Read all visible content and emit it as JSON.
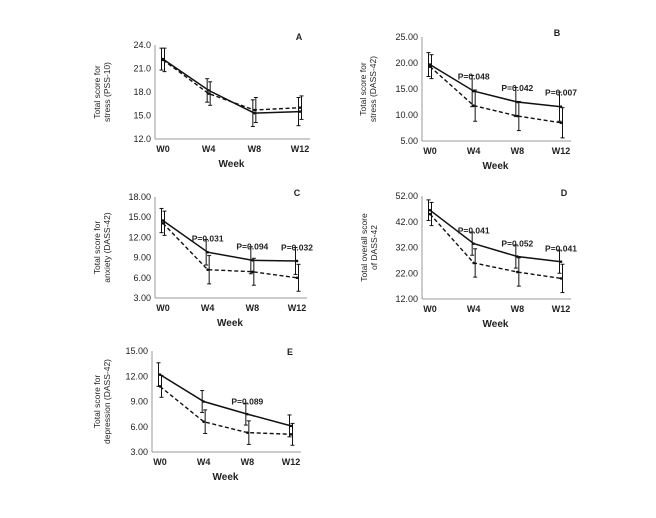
{
  "chart_data": [
    {
      "panel": "A",
      "type": "line",
      "ylabel": [
        "Total score for",
        "stress (PSS-10)"
      ],
      "xlabel": "Week",
      "categories": [
        "W0",
        "W4",
        "W8",
        "W12"
      ],
      "ylim": [
        12.0,
        24.0
      ],
      "yticks": [
        "12.0",
        "15.0",
        "18.0",
        "21.0",
        "24.0"
      ],
      "series": [
        {
          "name": "solid",
          "values": [
            22.2,
            18.2,
            15.3,
            15.5
          ],
          "err": [
            1.4,
            1.5,
            1.7,
            1.8
          ]
        },
        {
          "name": "dashed",
          "values": [
            22.1,
            17.8,
            15.7,
            16.0
          ],
          "err": [
            1.5,
            1.5,
            1.6,
            1.5
          ]
        }
      ],
      "annotations": []
    },
    {
      "panel": "B",
      "type": "line",
      "ylabel": [
        "Total score for",
        "stress (DASS-42)"
      ],
      "xlabel": "Week",
      "categories": [
        "W0",
        "W4",
        "W8",
        "W12"
      ],
      "ylim": [
        5.0,
        25.0
      ],
      "yticks": [
        "5.00",
        "10.00",
        "15.00",
        "20.00",
        "25.00"
      ],
      "series": [
        {
          "name": "solid",
          "values": [
            19.7,
            14.6,
            12.5,
            11.6
          ],
          "err": [
            2.3,
            3.0,
            2.8,
            2.8
          ]
        },
        {
          "name": "dashed",
          "values": [
            19.3,
            11.8,
            9.8,
            8.5
          ],
          "err": [
            2.3,
            3.0,
            2.8,
            2.9
          ]
        }
      ],
      "annotations": [
        {
          "label": "P=0.048",
          "at": 1
        },
        {
          "label": "P=0.042",
          "at": 2
        },
        {
          "label": "P=0.007",
          "at": 3
        }
      ]
    },
    {
      "panel": "C",
      "type": "line",
      "ylabel": [
        "Total score for",
        "anxiety (DASS-42)"
      ],
      "xlabel": "Week",
      "categories": [
        "W0",
        "W4",
        "W8",
        "W12"
      ],
      "ylim": [
        3.0,
        18.0
      ],
      "yticks": [
        "3.00",
        "6.00",
        "9.00",
        "12.00",
        "15.00",
        "18.00"
      ],
      "series": [
        {
          "name": "solid",
          "values": [
            14.5,
            9.8,
            8.6,
            8.5
          ],
          "err": [
            1.8,
            1.9,
            2.0,
            2.0
          ]
        },
        {
          "name": "dashed",
          "values": [
            14.1,
            7.2,
            6.9,
            6.0
          ],
          "err": [
            1.8,
            2.1,
            2.0,
            2.0
          ]
        }
      ],
      "annotations": [
        {
          "label": "P=0.031",
          "at": 1
        },
        {
          "label": "P=0.094",
          "at": 2
        },
        {
          "label": "P=0.032",
          "at": 3
        }
      ]
    },
    {
      "panel": "D",
      "type": "line",
      "ylabel": [
        "Total overall score",
        "of DASS-42"
      ],
      "xlabel": "Week",
      "categories": [
        "W0",
        "W4",
        "W8",
        "W12"
      ],
      "ylim": [
        12.0,
        52.0
      ],
      "yticks": [
        "12.00",
        "22.00",
        "32.00",
        "42.00",
        "52.00"
      ],
      "series": [
        {
          "name": "solid",
          "values": [
            46.5,
            33.5,
            28.5,
            26.5
          ],
          "err": [
            4.0,
            4.5,
            4.5,
            4.5
          ]
        },
        {
          "name": "dashed",
          "values": [
            45.0,
            26.0,
            22.5,
            20.0
          ],
          "err": [
            4.5,
            5.5,
            5.5,
            5.5
          ]
        }
      ],
      "annotations": [
        {
          "label": "P=0.041",
          "at": 1
        },
        {
          "label": "P=0.052",
          "at": 2
        },
        {
          "label": "P=0.041",
          "at": 3
        }
      ]
    },
    {
      "panel": "E",
      "type": "line",
      "ylabel": [
        "Total score for",
        "depression (DASS-42)"
      ],
      "xlabel": "Week",
      "categories": [
        "W0",
        "W4",
        "W8",
        "W12"
      ],
      "ylim": [
        3.0,
        15.0
      ],
      "yticks": [
        "3.00",
        "6.00",
        "9.00",
        "12.00",
        "15.00"
      ],
      "series": [
        {
          "name": "solid",
          "values": [
            12.2,
            9.0,
            7.5,
            6.1
          ],
          "err": [
            1.4,
            1.3,
            1.3,
            1.3
          ]
        },
        {
          "name": "dashed",
          "values": [
            10.8,
            6.6,
            5.3,
            5.1
          ],
          "err": [
            1.3,
            1.4,
            1.4,
            1.3
          ]
        }
      ],
      "annotations": [
        {
          "label": "P=0.089",
          "at": 2
        }
      ]
    }
  ]
}
